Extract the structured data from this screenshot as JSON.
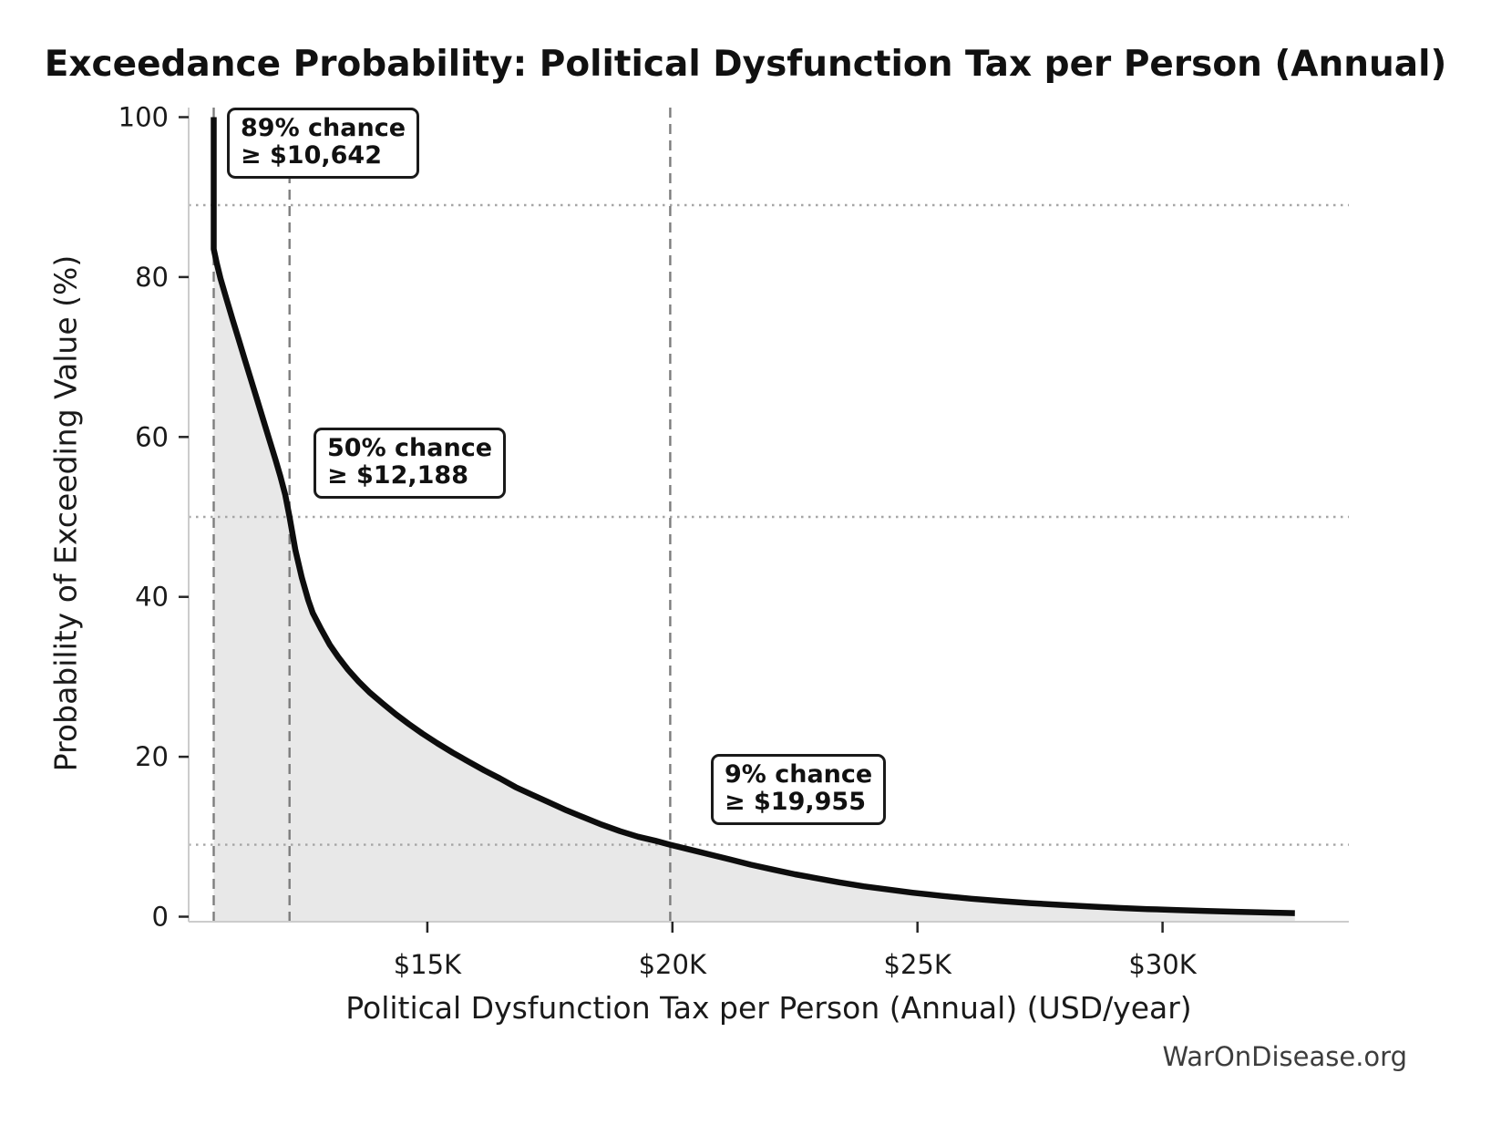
{
  "header": {
    "title": "Exceedance Probability: Political Dysfunction Tax per Person (Annual)"
  },
  "footer": {
    "text": "WarOnDisease.org"
  },
  "chart_data": {
    "type": "line",
    "title": "Exceedance Probability: Political Dysfunction Tax per Person (Annual)",
    "xlabel": "Political Dysfunction Tax per Person (Annual) (USD/year)",
    "ylabel": "Probability of Exceeding Value (%)",
    "xlim": [
      10130,
      33800
    ],
    "ylim": [
      0,
      100
    ],
    "grid": "dotted horizontal lines at marker probabilities; dashed vertical lines at marker values",
    "legend": "none",
    "x_ticks": [
      {
        "value": 15000,
        "label": "$15K"
      },
      {
        "value": 20000,
        "label": "$20K"
      },
      {
        "value": 25000,
        "label": "$25K"
      },
      {
        "value": 30000,
        "label": "$30K"
      }
    ],
    "y_ticks": [
      {
        "value": 0,
        "label": "0"
      },
      {
        "value": 20,
        "label": "20"
      },
      {
        "value": 40,
        "label": "40"
      },
      {
        "value": 60,
        "label": "60"
      },
      {
        "value": 80,
        "label": "80"
      },
      {
        "value": 100,
        "label": "100"
      }
    ],
    "markers": [
      {
        "probability_pct": 89,
        "value_usd": 10642,
        "label1": "89% chance",
        "label2": "≥ $10,642"
      },
      {
        "probability_pct": 50,
        "value_usd": 12188,
        "label1": "50% chance",
        "label2": "≥ $12,188"
      },
      {
        "probability_pct": 9,
        "value_usd": 19955,
        "label1": "9% chance",
        "label2": "≥ $19,955"
      }
    ],
    "series": [
      {
        "name": "exceedance-curve",
        "points_usd_pct": [
          [
            10642,
            100
          ],
          [
            10642,
            83.5
          ],
          [
            10700,
            81.8
          ],
          [
            10780,
            79.8
          ],
          [
            10900,
            77.3
          ],
          [
            11020,
            74.8
          ],
          [
            11150,
            72.2
          ],
          [
            11280,
            69.6
          ],
          [
            11400,
            67.2
          ],
          [
            11530,
            64.6
          ],
          [
            11650,
            62.2
          ],
          [
            11780,
            59.6
          ],
          [
            11900,
            57.2
          ],
          [
            12000,
            55.1
          ],
          [
            12100,
            52.8
          ],
          [
            12188,
            50
          ],
          [
            12310,
            45.8
          ],
          [
            12440,
            42.4
          ],
          [
            12570,
            39.6
          ],
          [
            12660,
            38
          ],
          [
            12840,
            35.9
          ],
          [
            13010,
            34
          ],
          [
            13180,
            32.5
          ],
          [
            13380,
            30.9
          ],
          [
            13600,
            29.4
          ],
          [
            13830,
            28
          ],
          [
            14100,
            26.6
          ],
          [
            14360,
            25.3
          ],
          [
            14620,
            24.1
          ],
          [
            14900,
            22.9
          ],
          [
            15200,
            21.7
          ],
          [
            15520,
            20.5
          ],
          [
            15840,
            19.4
          ],
          [
            16160,
            18.3
          ],
          [
            16480,
            17.3
          ],
          [
            16800,
            16.2
          ],
          [
            17120,
            15.3
          ],
          [
            17480,
            14.3
          ],
          [
            17840,
            13.3
          ],
          [
            18200,
            12.4
          ],
          [
            18560,
            11.5
          ],
          [
            18930,
            10.7
          ],
          [
            19300,
            10
          ],
          [
            19650,
            9.5
          ],
          [
            19955,
            9
          ],
          [
            20350,
            8.4
          ],
          [
            20750,
            7.8
          ],
          [
            21150,
            7.2
          ],
          [
            21600,
            6.5
          ],
          [
            22050,
            5.9
          ],
          [
            22500,
            5.3
          ],
          [
            22950,
            4.8
          ],
          [
            23400,
            4.3
          ],
          [
            23900,
            3.8
          ],
          [
            24400,
            3.4
          ],
          [
            24900,
            3.0
          ],
          [
            25500,
            2.6
          ],
          [
            26100,
            2.25
          ],
          [
            26700,
            1.95
          ],
          [
            27300,
            1.7
          ],
          [
            27900,
            1.48
          ],
          [
            28500,
            1.28
          ],
          [
            29100,
            1.1
          ],
          [
            29700,
            0.95
          ],
          [
            30300,
            0.83
          ],
          [
            30900,
            0.72
          ],
          [
            31500,
            0.62
          ],
          [
            32000,
            0.54
          ],
          [
            32400,
            0.48
          ],
          [
            32700,
            0.44
          ]
        ]
      }
    ],
    "colors": {
      "curve": "#0d0d0d",
      "fill": "#e8e8e8",
      "dashed_vline": "#7d7d7d",
      "dotted_hline": "#a6a6a6",
      "spine": "#cccccc",
      "tick": "#262626"
    }
  }
}
